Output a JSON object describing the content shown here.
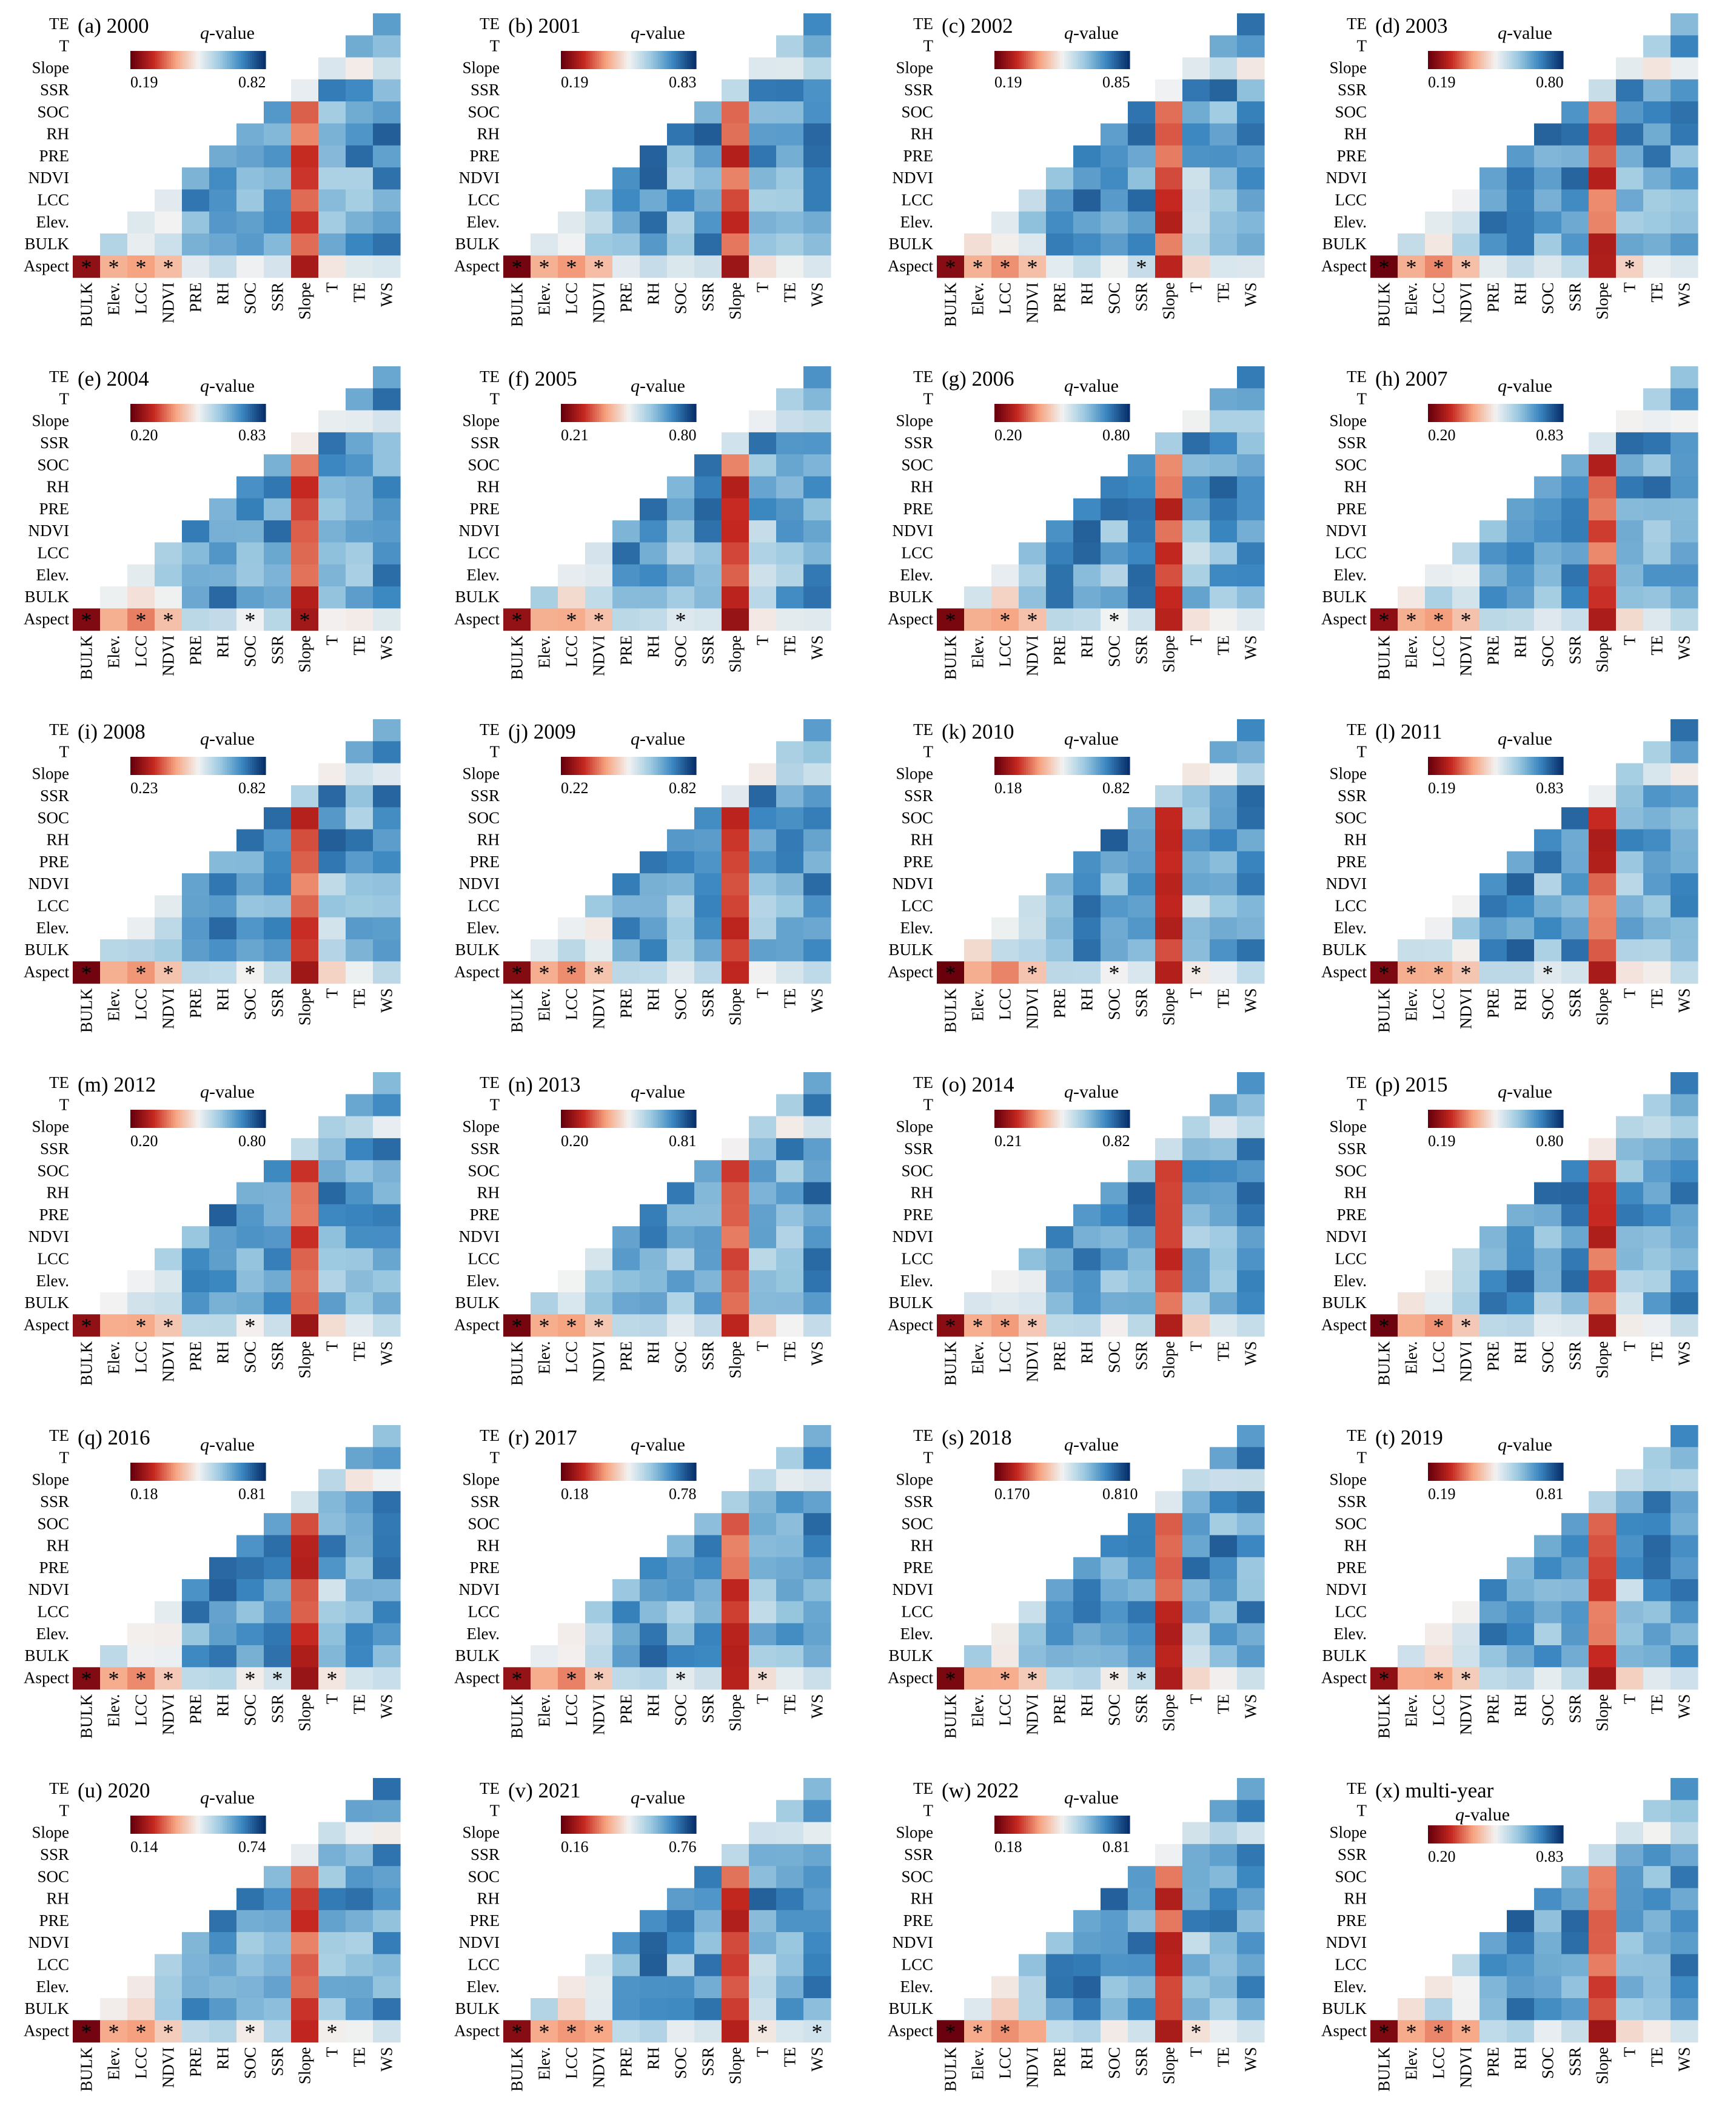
{
  "figure": {
    "type": "heatmap",
    "variables": [
      "BULK",
      "Elev.",
      "LCC",
      "NDVI",
      "PRE",
      "RH",
      "SOC",
      "SSR",
      "Slope",
      "T",
      "TE",
      "WS"
    ],
    "y_order_top_to_bottom": [
      "TE",
      "T",
      "Slope",
      "SSR",
      "SOC",
      "RH",
      "PRE",
      "NDVI",
      "LCC",
      "Elev.",
      "BULK",
      "Aspect"
    ],
    "x_order_left_to_right": [
      "BULK",
      "Elev.",
      "LCC",
      "NDVI",
      "PRE",
      "RH",
      "SOC",
      "SSR",
      "Slope",
      "T",
      "TE",
      "WS"
    ],
    "colorbar_label": "q-value",
    "colorbar_q_prefix": "q",
    "colorbar_q_suffix": "-value",
    "star_symbol": "*",
    "colors": [
      "#67000d",
      "#c52820",
      "#f6a582",
      "#f2f2f2",
      "#9ecae1",
      "#3a86c0",
      "#08306b"
    ]
  },
  "chart_data": [
    {
      "label": "(a) 2000",
      "cb_min": "0.19",
      "cb_max": "0.82",
      "stars": [
        "BULK",
        "Elev.",
        "LCC",
        "NDVI"
      ]
    },
    {
      "label": "(b) 2001",
      "cb_min": "0.19",
      "cb_max": "0.83",
      "stars": [
        "BULK",
        "Elev.",
        "LCC",
        "NDVI"
      ]
    },
    {
      "label": "(c) 2002",
      "cb_min": "0.19",
      "cb_max": "0.85",
      "stars": [
        "BULK",
        "Elev.",
        "LCC",
        "NDVI",
        "SSR"
      ]
    },
    {
      "label": "(d) 2003",
      "cb_min": "0.19",
      "cb_max": "0.80",
      "stars": [
        "BULK",
        "Elev.",
        "LCC",
        "NDVI",
        "T"
      ]
    },
    {
      "label": "(e) 2004",
      "cb_min": "0.20",
      "cb_max": "0.83",
      "stars": [
        "BULK",
        "LCC",
        "NDVI",
        "SOC",
        "Slope"
      ]
    },
    {
      "label": "(f) 2005",
      "cb_min": "0.21",
      "cb_max": "0.80",
      "stars": [
        "BULK",
        "LCC",
        "NDVI",
        "SOC"
      ]
    },
    {
      "label": "(g) 2006",
      "cb_min": "0.20",
      "cb_max": "0.80",
      "stars": [
        "BULK",
        "LCC",
        "NDVI",
        "SOC"
      ]
    },
    {
      "label": "(h) 2007",
      "cb_min": "0.20",
      "cb_max": "0.83",
      "stars": [
        "BULK",
        "Elev.",
        "LCC",
        "NDVI"
      ]
    },
    {
      "label": "(i) 2008",
      "cb_min": "0.23",
      "cb_max": "0.82",
      "stars": [
        "BULK",
        "LCC",
        "NDVI",
        "SOC"
      ]
    },
    {
      "label": "(j) 2009",
      "cb_min": "0.22",
      "cb_max": "0.82",
      "stars": [
        "BULK",
        "Elev.",
        "LCC",
        "NDVI"
      ]
    },
    {
      "label": "(k) 2010",
      "cb_min": "0.18",
      "cb_max": "0.82",
      "stars": [
        "BULK",
        "NDVI",
        "SOC",
        "T"
      ]
    },
    {
      "label": "(l) 2011",
      "cb_min": "0.19",
      "cb_max": "0.83",
      "stars": [
        "BULK",
        "Elev.",
        "LCC",
        "NDVI",
        "SOC"
      ]
    },
    {
      "label": "(m) 2012",
      "cb_min": "0.20",
      "cb_max": "0.80",
      "stars": [
        "BULK",
        "LCC",
        "NDVI",
        "SOC"
      ]
    },
    {
      "label": "(n) 2013",
      "cb_min": "0.20",
      "cb_max": "0.81",
      "stars": [
        "BULK",
        "Elev.",
        "LCC",
        "NDVI"
      ]
    },
    {
      "label": "(o) 2014",
      "cb_min": "0.21",
      "cb_max": "0.82",
      "stars": [
        "BULK",
        "Elev.",
        "LCC",
        "NDVI"
      ]
    },
    {
      "label": "(p) 2015",
      "cb_min": "0.19",
      "cb_max": "0.80",
      "stars": [
        "BULK",
        "LCC",
        "NDVI"
      ]
    },
    {
      "label": "(q) 2016",
      "cb_min": "0.18",
      "cb_max": "0.81",
      "stars": [
        "BULK",
        "Elev.",
        "LCC",
        "NDVI",
        "SOC",
        "SSR",
        "T"
      ]
    },
    {
      "label": "(r) 2017",
      "cb_min": "0.18",
      "cb_max": "0.78",
      "stars": [
        "BULK",
        "LCC",
        "NDVI",
        "SOC",
        "T"
      ]
    },
    {
      "label": "(s) 2018",
      "cb_min": "0.170",
      "cb_max": "0.810",
      "stars": [
        "BULK",
        "LCC",
        "NDVI",
        "SOC",
        "SSR"
      ]
    },
    {
      "label": "(t) 2019",
      "cb_min": "0.19",
      "cb_max": "0.81",
      "stars": [
        "BULK",
        "LCC",
        "NDVI"
      ]
    },
    {
      "label": "(u) 2020",
      "cb_min": "0.14",
      "cb_max": "0.74",
      "stars": [
        "BULK",
        "Elev.",
        "LCC",
        "NDVI",
        "SOC",
        "T"
      ]
    },
    {
      "label": "(v) 2021",
      "cb_min": "0.16",
      "cb_max": "0.76",
      "stars": [
        "BULK",
        "Elev.",
        "LCC",
        "NDVI",
        "T",
        "WS"
      ]
    },
    {
      "label": "(w) 2022",
      "cb_min": "0.18",
      "cb_max": "0.81",
      "stars": [
        "BULK",
        "Elev.",
        "LCC",
        "T"
      ]
    },
    {
      "label": "(x) multi-year",
      "cb_min": "0.20",
      "cb_max": "0.83",
      "stars": [
        "BULK",
        "Elev.",
        "LCC",
        "NDVI"
      ]
    }
  ]
}
